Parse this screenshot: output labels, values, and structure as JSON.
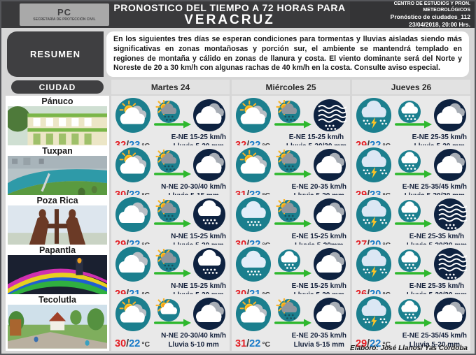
{
  "header": {
    "logo": {
      "abbr": "PC",
      "org": "SECRETARÍA DE PROTECCIÓN CIVIL"
    },
    "title_line1": "PRONOSTICO DEL TIEMPO A 72 HORAS PARA",
    "title_line2": "VERACRUZ",
    "right": {
      "line1": "CENTRO DE ESTUDIOS Y PRON. METEOROLÓGICOS",
      "line2": "Pronóstico de ciudades_112",
      "line3": "23/04/2018, 20:00 Hrs."
    }
  },
  "resumen": {
    "label": "RESUMEN",
    "text": "En los siguientes tres días se esperan condiciones para tormentas y lluvias aisladas siendo más significativas en zonas montañosas y porción sur, el ambiente se mantendrá templado en regiones de montaña y cálido en zonas de llanura y costa. El viento dominante será del Norte y Noreste de 20 a 30 km/h con algunas rachas de 40 km/h en la costa. Consulte aviso especial."
  },
  "table": {
    "city_header": "CIUDAD",
    "day_headers": [
      "Martes 24",
      "Miércoles 25",
      "Jueves 26"
    ],
    "temp_sep": "/",
    "rows": [
      {
        "city": "Pánuco",
        "photo": "panuco",
        "days": [
          {
            "day_icon": "partly-cloudy",
            "wind_icon": "wind-sun-rain",
            "night_icon": "night-cloudy",
            "tmax": "32",
            "tmin": "23",
            "unit": "°C",
            "wind": "E-NE 15-25 km/h",
            "rain": "Lluvia 5-20 mm"
          },
          {
            "day_icon": "partly-cloudy",
            "wind_icon": "wind-sun-rain",
            "night_icon": "night-heavy-rain",
            "tmax": "32",
            "tmin": "22",
            "unit": "°C",
            "wind": "E-NE 15-25 km/h",
            "rain": "Lluvia 5-20/30 mm"
          },
          {
            "day_icon": "storm",
            "wind_icon": "wind-rain",
            "night_icon": "night-cloudy",
            "tmax": "29",
            "tmin": "22",
            "unit": "°C",
            "wind": "E-NE 25-35 km/h",
            "rain": "Lluvia 5-20 mm"
          }
        ]
      },
      {
        "city": "Tuxpan",
        "photo": "tuxpan",
        "days": [
          {
            "day_icon": "partly-cloudy",
            "wind_icon": "wind-sun-rain",
            "night_icon": "night-cloudy",
            "tmax": "30",
            "tmin": "22",
            "unit": "°C",
            "wind": "N-NE 20-30/40 km/h",
            "rain": "Lluvia 5-15 mm"
          },
          {
            "day_icon": "partly-cloudy",
            "wind_icon": "wind-sun-rain",
            "night_icon": "night-cloudy",
            "tmax": "31",
            "tmin": "22",
            "unit": "°C",
            "wind": "E-NE 20-35 km/h",
            "rain": "Lluvia 5-20 mm"
          },
          {
            "day_icon": "storm",
            "wind_icon": "wind-rain",
            "night_icon": "night-cloudy",
            "tmax": "29",
            "tmin": "23",
            "unit": "°C",
            "wind": "E-NE 25-35/45 km/h",
            "rain": "Lluvia 5-20/30 mm"
          }
        ]
      },
      {
        "city": "Poza Rica",
        "photo": "pozarica",
        "days": [
          {
            "day_icon": "cloudy",
            "wind_icon": "wind-sun-rain",
            "night_icon": "night-rain",
            "tmax": "29",
            "tmin": "22",
            "unit": "°C",
            "wind": "N-NE 15-25 km/h",
            "rain": "Lluvia 5-20 mm"
          },
          {
            "day_icon": "rain",
            "wind_icon": "wind-sun-rain",
            "night_icon": "night-cloudy",
            "tmax": "30",
            "tmin": "22",
            "unit": "°C",
            "wind": "E-NE 15-25 km/h",
            "rain": "Lluvia 5-20mm"
          },
          {
            "day_icon": "storm",
            "wind_icon": "wind-rain",
            "night_icon": "night-heavy-rain",
            "tmax": "27",
            "tmin": "20",
            "unit": "°C",
            "wind": "E-NE 25-35 km/h",
            "rain": "Lluvia 5-20/30 mm"
          }
        ]
      },
      {
        "city": "Papantla",
        "photo": "papantla",
        "days": [
          {
            "day_icon": "cloudy",
            "wind_icon": "wind-sun-rain",
            "night_icon": "night-rain",
            "tmax": "29",
            "tmin": "21",
            "unit": "°C",
            "wind": "N-NE 15-25 km/h",
            "rain": "Lluvia 5-20 mm"
          },
          {
            "day_icon": "rain",
            "wind_icon": "wind-rain",
            "night_icon": "night-cloudy",
            "tmax": "30",
            "tmin": "21",
            "unit": "°C",
            "wind": "E-NE 15-25 km/h",
            "rain": "Lluvia 5-20 mm"
          },
          {
            "day_icon": "storm",
            "wind_icon": "wind-rain",
            "night_icon": "night-heavy-rain",
            "tmax": "26",
            "tmin": "20",
            "unit": "°C",
            "wind": "E-NE 25-35 km/h",
            "rain": "Lluvia 5-20/30 mm"
          }
        ]
      },
      {
        "city": "Tecolutla",
        "photo": "tecolutla",
        "days": [
          {
            "day_icon": "partly-cloudy",
            "wind_icon": "wind-sun-cloud",
            "night_icon": "night-cloudy",
            "tmax": "30",
            "tmin": "22",
            "unit": "°C",
            "wind": "N-NE 20-30/40 km/h",
            "rain": "Lluvia 5-10 mm"
          },
          {
            "day_icon": "partly-cloudy",
            "wind_icon": "wind-sun-rain",
            "night_icon": "night-cloudy",
            "tmax": "31",
            "tmin": "22",
            "unit": "°C",
            "wind": "E-NE 20-35 km/h",
            "rain": "Lluvia 5-15 mm"
          },
          {
            "day_icon": "storm",
            "wind_icon": "wind-rain",
            "night_icon": "night-cloudy",
            "tmax": "29",
            "tmin": "22",
            "unit": "°C",
            "wind": "E-NE 25-35/45 km/h",
            "rain": "Lluvia 5-20 mm"
          }
        ]
      }
    ]
  },
  "footer": {
    "credit": "Elaboró: José Llanos/ Yas Córdoba"
  },
  "colors": {
    "teal_day": "#1b7f8e",
    "navy_night": "#0e2240",
    "temp_max_red": "#e31e24",
    "temp_min_blue": "#1478c8",
    "wind_arrow_green": "#2eb82e",
    "header_dark": "#3a3a3c"
  }
}
